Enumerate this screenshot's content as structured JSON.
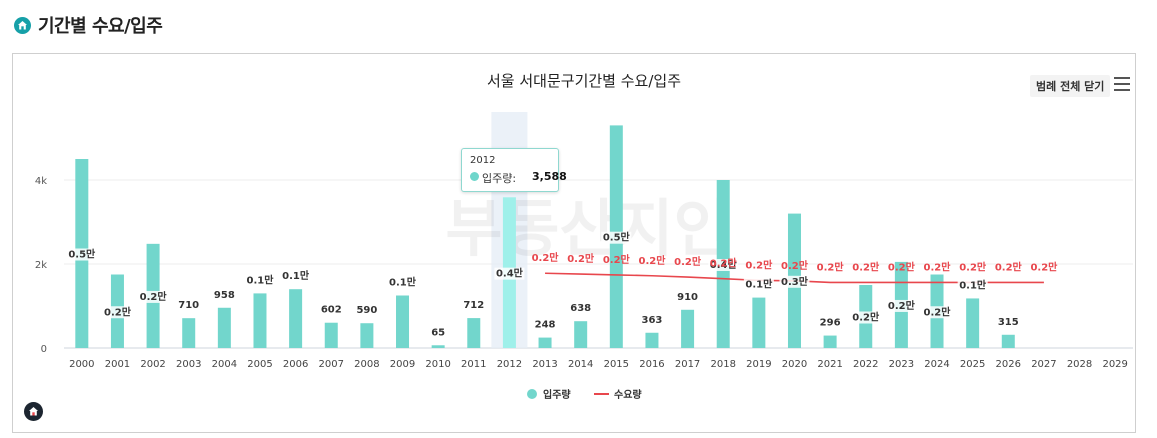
{
  "section": {
    "title": "기간별 수요/입주",
    "icon": "home-icon"
  },
  "controls": {
    "legend_toggle": "범례 전체 닫기",
    "menu_icon": "hamburger-menu-icon"
  },
  "watermark": "부동산지인",
  "tooltip": {
    "year": "2012",
    "label": "입주량:",
    "value": "3,588"
  },
  "colors": {
    "supply": "#72d6cc",
    "supply_highlight": "#9ff0ea",
    "demand": "#e8474d",
    "accent": "#16a0a8"
  },
  "chart_data": {
    "type": "bar",
    "title": "서울 서대문구기간별 수요/입주",
    "xlabel": "",
    "ylabel": "",
    "ylim": [
      0,
      5500
    ],
    "ytick_values": [
      0,
      2000,
      4000
    ],
    "ytick_labels": [
      "0",
      "2k",
      "4k"
    ],
    "grid": true,
    "legend_position": "bottom",
    "highlight_category": "2012",
    "categories": [
      "2000",
      "2001",
      "2002",
      "2003",
      "2004",
      "2005",
      "2006",
      "2007",
      "2008",
      "2009",
      "2010",
      "2011",
      "2012",
      "2013",
      "2014",
      "2015",
      "2016",
      "2017",
      "2018",
      "2019",
      "2020",
      "2021",
      "2022",
      "2023",
      "2024",
      "2025",
      "2026",
      "2027",
      "2028",
      "2029"
    ],
    "series": [
      {
        "name": "입주량",
        "kind": "bar",
        "values": [
          4500,
          1750,
          2480,
          710,
          958,
          1300,
          1400,
          602,
          590,
          1250,
          65,
          712,
          3588,
          248,
          638,
          5300,
          363,
          910,
          4000,
          1200,
          3200,
          296,
          1500,
          2050,
          1750,
          1180,
          315,
          null,
          null,
          null
        ],
        "labels": [
          "0.5만",
          "0.2만",
          "0.2만",
          "710",
          "958",
          "0.1만",
          "0.1만",
          "602",
          "590",
          "0.1만",
          "65",
          "712",
          "0.4만",
          "248",
          "638",
          "0.5만",
          "363",
          "910",
          "0.4만",
          "0.1만",
          "0.3만",
          "296",
          "0.2만",
          "0.2만",
          "0.2만",
          "0.1만",
          "315",
          "",
          "",
          ""
        ]
      },
      {
        "name": "수요량",
        "kind": "line",
        "values": [
          null,
          null,
          null,
          null,
          null,
          null,
          null,
          null,
          null,
          null,
          null,
          null,
          null,
          1780,
          1760,
          1740,
          1720,
          1690,
          1650,
          1610,
          1600,
          1560,
          1560,
          1560,
          1560,
          1560,
          1560,
          1560,
          null,
          null
        ],
        "labels": [
          "",
          "",
          "",
          "",
          "",
          "",
          "",
          "",
          "",
          "",
          "",
          "",
          "",
          "0.2만",
          "0.2만",
          "0.2만",
          "0.2만",
          "0.2만",
          "0.2만",
          "0.2만",
          "0.2만",
          "0.2만",
          "0.2만",
          "0.2만",
          "0.2만",
          "0.2만",
          "0.2만",
          "0.2만",
          "",
          ""
        ]
      }
    ]
  }
}
